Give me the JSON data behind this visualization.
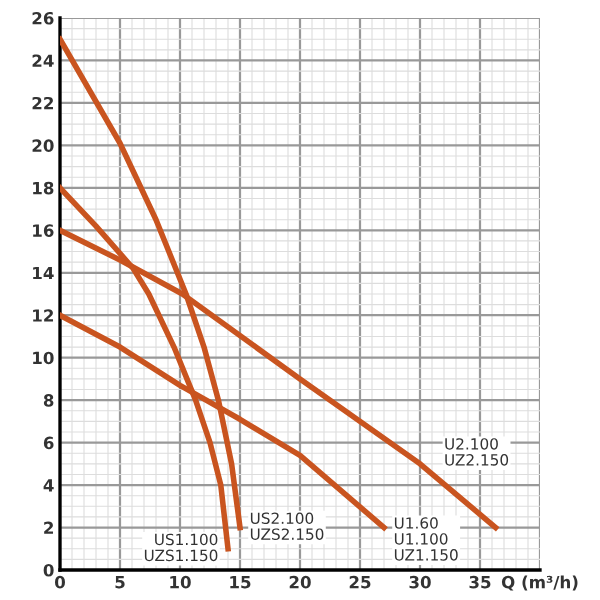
{
  "chart_data": {
    "type": "line",
    "xlabel": "Q (m³/h)",
    "xlim": [
      0,
      40
    ],
    "ylim": [
      0,
      26
    ],
    "xticks": [
      0,
      5,
      10,
      15,
      20,
      25,
      30,
      35
    ],
    "yticks": [
      0,
      2,
      4,
      6,
      8,
      10,
      12,
      14,
      16,
      18,
      20,
      22,
      24,
      26
    ],
    "grid": true,
    "marker": "none",
    "line_style": "solid",
    "series": [
      {
        "name": "US1.100\nUZS1.150",
        "color": "#c9541f",
        "x": [
          0,
          3,
          6.1,
          7.4,
          9.5,
          11.3,
          12.5,
          13.4,
          14
        ],
        "values": [
          18,
          16.2,
          14.2,
          13,
          10.5,
          8,
          6,
          4,
          1
        ]
      },
      {
        "name": "US2.100\nUZS2.150",
        "color": "#c9541f",
        "x": [
          0,
          5,
          8,
          10.5,
          12,
          13.2,
          14.3,
          15
        ],
        "values": [
          25,
          20.1,
          16.5,
          13,
          10.5,
          8,
          5,
          2
        ]
      },
      {
        "name": "U1.60\nU1.100\nUZ1.150",
        "color": "#c9541f",
        "x": [
          0,
          5,
          10,
          15,
          20,
          27
        ],
        "values": [
          12,
          10.5,
          8.7,
          7.1,
          5.4,
          2
        ]
      },
      {
        "name": "U2.100\nUZ2.150",
        "color": "#c9541f",
        "x": [
          0,
          5,
          10.2,
          20,
          30,
          36.3
        ],
        "values": [
          16,
          14.6,
          13,
          9,
          5,
          2
        ]
      }
    ]
  }
}
